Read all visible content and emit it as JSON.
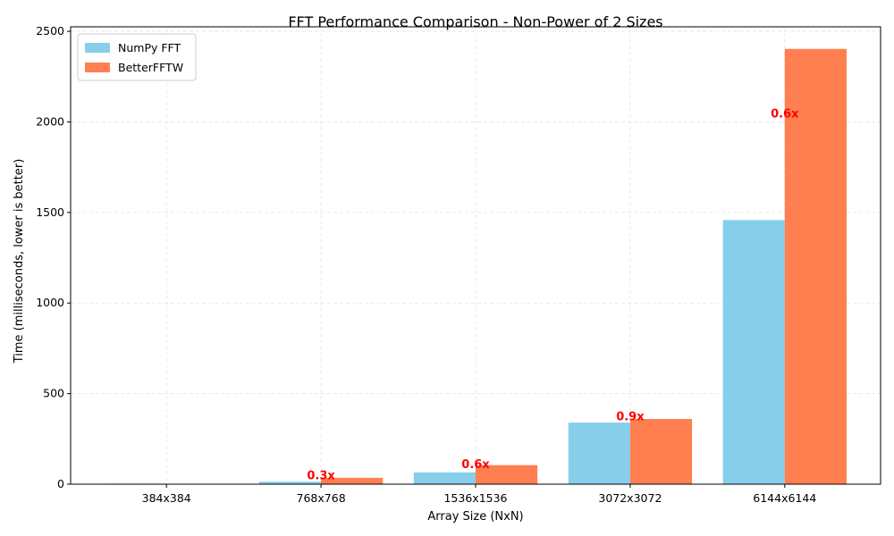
{
  "chart_data": {
    "type": "bar",
    "title": "FFT Performance Comparison - Non-Power of 2 Sizes",
    "xlabel": "Array Size (NxN)",
    "ylabel": "Time (milliseconds, lower is better)",
    "categories": [
      "384x384",
      "768x768",
      "1536x1536",
      "3072x3072",
      "6144x6144"
    ],
    "series": [
      {
        "name": "NumPy FFT",
        "color": "#87ceeb",
        "values": [
          3,
          14,
          65,
          340,
          1458
        ]
      },
      {
        "name": "BetterFFTW",
        "color": "#ff7f50",
        "values": [
          1,
          35,
          105,
          360,
          2403
        ]
      }
    ],
    "ratio_labels": [
      "",
      "0.3x",
      "0.6x",
      "0.9x",
      "0.6x"
    ],
    "ratio_label_color": "#ff0000",
    "yticks": [
      "0",
      "500",
      "1000",
      "1500",
      "2000",
      "2500"
    ],
    "ytick_values": [
      0,
      500,
      1000,
      1500,
      2000,
      2500
    ],
    "ylim": [
      0,
      2525
    ],
    "grid": true,
    "legend_position": "top-left"
  }
}
